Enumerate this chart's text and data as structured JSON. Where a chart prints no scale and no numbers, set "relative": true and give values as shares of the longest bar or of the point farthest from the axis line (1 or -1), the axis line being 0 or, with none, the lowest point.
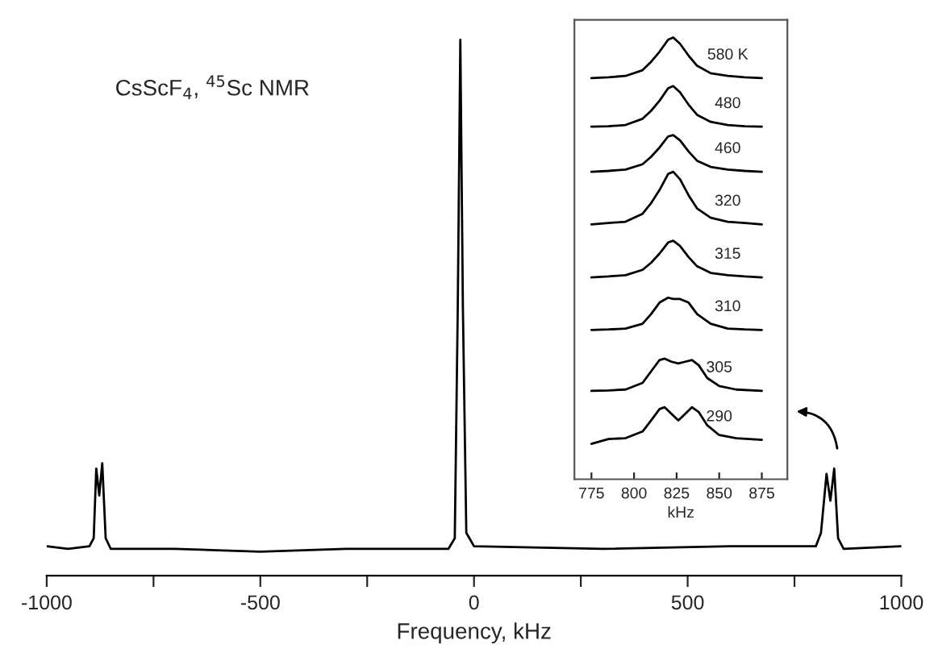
{
  "chart_data": [
    {
      "type": "line",
      "relative": true,
      "title": "CsScF$_{4}$, $^{45}$Sc NMR",
      "xlabel": "Frequency, kHz",
      "xlim": [
        -1000,
        1000
      ],
      "xticks": [
        -1000,
        {
          "value": -750,
          "label": null
        },
        -500,
        {
          "value": -250,
          "label": null
        },
        0,
        {
          "value": 250,
          "label": null
        },
        500,
        {
          "value": 750,
          "label": null
        },
        1000
      ],
      "tick_labels": "x",
      "grid": false,
      "legend": false,
      "series": [
        {
          "color": "#000000",
          "x": [
            -1000,
            -950,
            -900,
            -890,
            -884,
            -877,
            -870,
            -862,
            -850,
            -700,
            -500,
            -300,
            -60,
            -45,
            -38,
            -32,
            -26,
            -18,
            0,
            300,
            600,
            800,
            812,
            825,
            834,
            843,
            852,
            865,
            1000
          ],
          "values": [
            0.055,
            0.05,
            0.055,
            0.07,
            0.2,
            0.15,
            0.21,
            0.07,
            0.05,
            0.05,
            0.045,
            0.05,
            0.05,
            0.07,
            0.5,
            1.0,
            0.5,
            0.08,
            0.055,
            0.05,
            0.055,
            0.055,
            0.08,
            0.19,
            0.14,
            0.2,
            0.07,
            0.05,
            0.055
          ]
        }
      ]
    },
    {
      "type": "line",
      "relative": true,
      "xlabel": "kHz",
      "xlim": [
        765,
        890
      ],
      "xticks": [
        775,
        800,
        825,
        850,
        875
      ],
      "tick_labels": "x",
      "grid": false,
      "legend": false,
      "series": [
        {
          "name": "580 K",
          "color": "#000000",
          "x": [
            775,
            785,
            795,
            805,
            810,
            815,
            820,
            823,
            827,
            832,
            837,
            845,
            855,
            865,
            875
          ],
          "values": [
            0.908,
            0.91,
            0.913,
            0.926,
            0.945,
            0.968,
            0.995,
            1.0,
            0.986,
            0.959,
            0.936,
            0.919,
            0.913,
            0.91,
            0.908
          ]
        },
        {
          "name": "480",
          "color": "#000000",
          "x": [
            775,
            785,
            795,
            805,
            810,
            815,
            820,
            823,
            827,
            832,
            837,
            845,
            855,
            865,
            875
          ],
          "values": [
            0.798,
            0.799,
            0.802,
            0.816,
            0.834,
            0.857,
            0.885,
            0.89,
            0.876,
            0.848,
            0.825,
            0.809,
            0.802,
            0.799,
            0.798
          ]
        },
        {
          "name": "460",
          "color": "#000000",
          "x": [
            775,
            785,
            795,
            805,
            810,
            815,
            820,
            823,
            827,
            832,
            837,
            845,
            855,
            865,
            875
          ],
          "values": [
            0.696,
            0.698,
            0.701,
            0.713,
            0.73,
            0.751,
            0.776,
            0.779,
            0.767,
            0.742,
            0.721,
            0.707,
            0.701,
            0.698,
            0.696
          ]
        },
        {
          "name": "320",
          "color": "#000000",
          "x": [
            775,
            785,
            795,
            805,
            810,
            815,
            820,
            823,
            827,
            832,
            837,
            845,
            855,
            865,
            875
          ],
          "values": [
            0.577,
            0.58,
            0.583,
            0.601,
            0.625,
            0.655,
            0.691,
            0.696,
            0.679,
            0.643,
            0.613,
            0.592,
            0.583,
            0.58,
            0.577
          ]
        },
        {
          "name": "315",
          "color": "#000000",
          "x": [
            775,
            785,
            795,
            805,
            810,
            815,
            820,
            823,
            827,
            832,
            837,
            845,
            855,
            865,
            875
          ],
          "values": [
            0.457,
            0.459,
            0.462,
            0.474,
            0.49,
            0.511,
            0.536,
            0.54,
            0.528,
            0.503,
            0.482,
            0.467,
            0.462,
            0.459,
            0.457
          ]
        },
        {
          "name": "310",
          "color": "#000000",
          "x": [
            775,
            785,
            795,
            805,
            810,
            815,
            820,
            823,
            827,
            832,
            837,
            845,
            855,
            865,
            875
          ],
          "values": [
            0.338,
            0.339,
            0.341,
            0.352,
            0.374,
            0.4,
            0.411,
            0.408,
            0.408,
            0.4,
            0.374,
            0.352,
            0.341,
            0.339,
            0.338
          ]
        },
        {
          "name": "305",
          "color": "#000000",
          "x": [
            775,
            785,
            795,
            805,
            810,
            815,
            818,
            822,
            826,
            830,
            834,
            838,
            843,
            850,
            860,
            875
          ],
          "values": [
            0.2,
            0.201,
            0.203,
            0.218,
            0.244,
            0.27,
            0.273,
            0.266,
            0.262,
            0.266,
            0.27,
            0.258,
            0.229,
            0.211,
            0.203,
            0.2
          ]
        },
        {
          "name": "290",
          "color": "#000000",
          "x": [
            775,
            785,
            795,
            805,
            810,
            815,
            818,
            822,
            826,
            830,
            834,
            838,
            843,
            850,
            860,
            875
          ],
          "values": [
            0.08,
            0.091,
            0.093,
            0.108,
            0.133,
            0.159,
            0.163,
            0.148,
            0.133,
            0.148,
            0.163,
            0.152,
            0.122,
            0.1,
            0.093,
            0.089
          ]
        }
      ]
    }
  ]
}
